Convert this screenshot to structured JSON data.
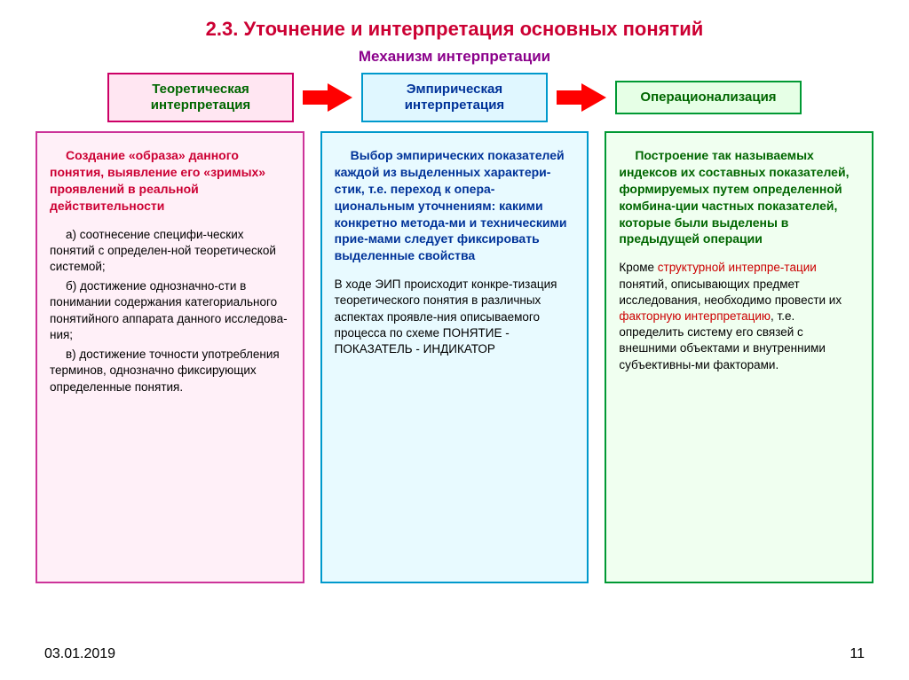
{
  "title": "2.3. Уточнение и интерпретация основных понятий",
  "title_color": "#cc0033",
  "subtitle": "Механизм интерпретации",
  "subtitle_color": "#8b008b",
  "arrow_color": "#ff0000",
  "stages": [
    {
      "label": "Теоретическая<br>интерпретация",
      "bg": "#ffe6f2",
      "border": "#cc0066",
      "text": "#006600"
    },
    {
      "label": "Эмпирическая<br>интерпретация",
      "bg": "#e0f7ff",
      "border": "#0099cc",
      "text": "#003399"
    },
    {
      "label": "Операционализация",
      "bg": "#e6ffe6",
      "border": "#009933",
      "text": "#006600"
    }
  ],
  "columns": {
    "col1": {
      "bg": "#fff0f8",
      "border": "#cc3399",
      "lead_color": "#cc0033",
      "lead": "Создание «образа» данного понятия, выявление его «зримых» проявлений в реальной действительности",
      "sub_a": "а) соотнесение специфи-ческих понятий с определен-ной теоретической системой;",
      "sub_b": "б) достижение однозначно-сти в понимании содержания категориального понятийного аппарата данного исследова-ния;",
      "sub_c": "в) достижение точности употребления терминов, однозначно фиксирующих определенные понятия."
    },
    "col2": {
      "bg": "#e8faff",
      "border": "#0099cc",
      "lead_color": "#003399",
      "lead": "Выбор эмпирических показателей каждой из выделенных характери-стик, т.е. переход к опера-циональным уточнениям: какими конкретно метода-ми и техническими прие-мами следует фиксировать выделенные свойства",
      "para": "В ходе ЭИП происходит конкре-тизация теоретического понятия в различных аспектах проявле-ния описываемого процесса по схеме ПОНЯТИЕ - ПОКАЗАТЕЛЬ - ИНДИКАТОР"
    },
    "col3": {
      "bg": "#f0fff0",
      "border": "#009933",
      "lead_color": "#006600",
      "lead": "Построение так называемых индексов их составных показателей, формируемых путем определенной комбина-ции частных показателей, которые были выделены в предыдущей операции",
      "para_pre": "Кроме ",
      "para_hl1": "структурной интерпре-тации",
      "para_mid": " понятий, описывающих предмет исследования, необходимо провести их ",
      "para_hl2": "факторную интерпретацию",
      "para_post": ", т.е. определить систему его связей с внешними объектами и внутренними субъективны-ми факторами."
    }
  },
  "footer": {
    "date": "03.01.2019",
    "page": "11"
  }
}
